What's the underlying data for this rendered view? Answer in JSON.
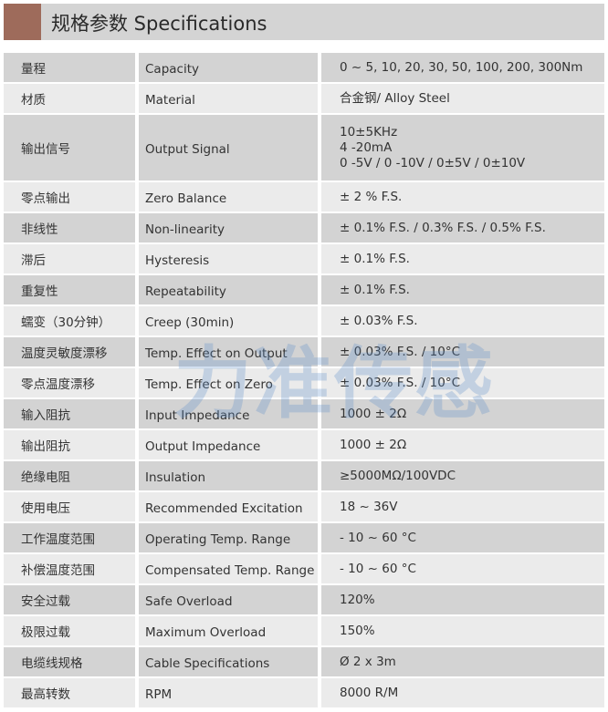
{
  "header": {
    "title": "规格参数 Specifications",
    "accent_color": "#9e6b5b"
  },
  "watermark": "力准传感",
  "rows": [
    {
      "cn": "量程",
      "en": "Capacity",
      "value": [
        "0 ~ 5, 10, 20, 30, 50, 100, 200, 300Nm"
      ]
    },
    {
      "cn": "材质",
      "en": "Material",
      "value": [
        "合金钢/ Alloy Steel"
      ]
    },
    {
      "cn": "输出信号",
      "en": "Output Signal",
      "value": [
        "10±5KHz",
        "4 -20mA",
        "0 -5V / 0 -10V / 0±5V / 0±10V"
      ]
    },
    {
      "cn": "零点输出",
      "en": "Zero Balance",
      "value": [
        "± 2 % F.S."
      ]
    },
    {
      "cn": "非线性",
      "en": "Non-linearity",
      "value": [
        "± 0.1% F.S. / 0.3% F.S. / 0.5% F.S."
      ]
    },
    {
      "cn": "滞后",
      "en": "Hysteresis",
      "value": [
        "± 0.1% F.S."
      ]
    },
    {
      "cn": "重复性",
      "en": "Repeatability",
      "value": [
        "± 0.1% F.S."
      ]
    },
    {
      "cn": "蠕变（30分钟）",
      "en": "Creep (30min)",
      "value": [
        "± 0.03% F.S."
      ]
    },
    {
      "cn": "温度灵敏度漂移",
      "en": "Temp. Effect on Output",
      "value": [
        "± 0.03% F.S. / 10°C"
      ]
    },
    {
      "cn": "零点温度漂移",
      "en": "Temp. Effect on Zero",
      "value": [
        "± 0.03% F.S. / 10°C"
      ]
    },
    {
      "cn": "输入阻抗",
      "en": "Input Impedance",
      "value": [
        "1000 ± 2Ω"
      ]
    },
    {
      "cn": "输出阻抗",
      "en": "Output Impedance",
      "value": [
        "1000 ± 2Ω"
      ]
    },
    {
      "cn": "绝缘电阻",
      "en": "Insulation",
      "value": [
        "≥5000MΩ/100VDC"
      ]
    },
    {
      "cn": "使用电压",
      "en": "Recommended Excitation",
      "value": [
        "18 ~ 36V"
      ]
    },
    {
      "cn": "工作温度范围",
      "en": "Operating Temp. Range",
      "value": [
        "- 10 ~ 60 °C"
      ]
    },
    {
      "cn": "补偿温度范围",
      "en": "Compensated Temp. Range",
      "value": [
        "- 10 ~ 60 °C"
      ]
    },
    {
      "cn": "安全过载",
      "en": "Safe Overload",
      "value": [
        "120%"
      ]
    },
    {
      "cn": "极限过载",
      "en": "Maximum Overload",
      "value": [
        "150%"
      ]
    },
    {
      "cn": "电缆线规格",
      "en": "Cable Specifications",
      "value": [
        "Ø 2 x 3m"
      ]
    },
    {
      "cn": "最高转数",
      "en": " RPM",
      "value": [
        "8000 R/M"
      ]
    }
  ]
}
